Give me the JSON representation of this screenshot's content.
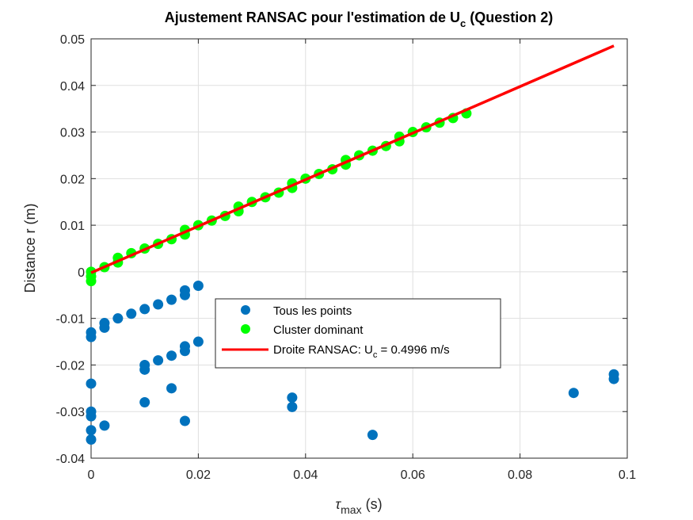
{
  "chart_data": {
    "type": "scatter",
    "title": "Ajustement RANSAC pour l'estimation de U",
    "title_sub": "c",
    "title_suffix": " (Question 2)",
    "xlabel_symbol": "τ",
    "xlabel_sub": "max",
    "xlabel_unit": " (s)",
    "ylabel": "Distance r (m)",
    "xlim": [
      0,
      0.1
    ],
    "ylim": [
      -0.04,
      0.05
    ],
    "xticks": [
      "0",
      "0.02",
      "0.04",
      "0.06",
      "0.08",
      "0.1"
    ],
    "yticks": [
      "-0.04",
      "-0.03",
      "-0.02",
      "-0.01",
      "0",
      "0.01",
      "0.02",
      "0.03",
      "0.04",
      "0.05"
    ],
    "grid": true,
    "legend_placement": "center",
    "series": [
      {
        "name": "Tous les points",
        "color": "#0072BD",
        "marker": "circle",
        "points": [
          [
            0,
            -0.013
          ],
          [
            0,
            -0.014
          ],
          [
            0,
            -0.024
          ],
          [
            0,
            -0.03
          ],
          [
            0,
            -0.031
          ],
          [
            0,
            -0.034
          ],
          [
            0,
            -0.036
          ],
          [
            0.0025,
            -0.011
          ],
          [
            0.0025,
            -0.012
          ],
          [
            0.0025,
            -0.033
          ],
          [
            0.005,
            -0.01
          ],
          [
            0.0075,
            -0.009
          ],
          [
            0.01,
            -0.008
          ],
          [
            0.01,
            -0.02
          ],
          [
            0.01,
            -0.021
          ],
          [
            0.01,
            -0.028
          ],
          [
            0.0125,
            -0.007
          ],
          [
            0.0125,
            -0.019
          ],
          [
            0.015,
            -0.006
          ],
          [
            0.015,
            -0.018
          ],
          [
            0.015,
            -0.025
          ],
          [
            0.0175,
            -0.004
          ],
          [
            0.0175,
            -0.005
          ],
          [
            0.0175,
            -0.016
          ],
          [
            0.0175,
            -0.017
          ],
          [
            0.0175,
            -0.032
          ],
          [
            0.02,
            -0.003
          ],
          [
            0.02,
            -0.015
          ],
          [
            0.0375,
            -0.027
          ],
          [
            0.0375,
            -0.029
          ],
          [
            0.0525,
            -0.035
          ],
          [
            0.09,
            -0.026
          ],
          [
            0.0975,
            -0.022
          ],
          [
            0.0975,
            -0.023
          ]
        ]
      },
      {
        "name": "Cluster dominant",
        "color": "#00FF00",
        "marker": "circle",
        "points": [
          [
            0,
            0.0
          ],
          [
            0,
            -0.001
          ],
          [
            0,
            -0.002
          ],
          [
            0.0025,
            0.001
          ],
          [
            0.005,
            0.002
          ],
          [
            0.005,
            0.003
          ],
          [
            0.0075,
            0.004
          ],
          [
            0.01,
            0.005
          ],
          [
            0.0125,
            0.006
          ],
          [
            0.015,
            0.007
          ],
          [
            0.0175,
            0.008
          ],
          [
            0.0175,
            0.009
          ],
          [
            0.02,
            0.01
          ],
          [
            0.0225,
            0.011
          ],
          [
            0.025,
            0.012
          ],
          [
            0.0275,
            0.013
          ],
          [
            0.0275,
            0.014
          ],
          [
            0.03,
            0.015
          ],
          [
            0.0325,
            0.016
          ],
          [
            0.035,
            0.017
          ],
          [
            0.0375,
            0.018
          ],
          [
            0.0375,
            0.019
          ],
          [
            0.04,
            0.02
          ],
          [
            0.0425,
            0.021
          ],
          [
            0.045,
            0.022
          ],
          [
            0.0475,
            0.023
          ],
          [
            0.0475,
            0.024
          ],
          [
            0.05,
            0.025
          ],
          [
            0.0525,
            0.026
          ],
          [
            0.055,
            0.027
          ],
          [
            0.0575,
            0.028
          ],
          [
            0.0575,
            0.029
          ],
          [
            0.06,
            0.03
          ],
          [
            0.0625,
            0.031
          ],
          [
            0.065,
            0.032
          ],
          [
            0.0675,
            0.033
          ],
          [
            0.07,
            0.034
          ]
        ]
      },
      {
        "name": "Droite RANSAC: U",
        "name_sub": "c",
        "name_suffix": " = 0.4996 m/s",
        "color": "#FF0000",
        "type": "line",
        "x": [
          0,
          0.0975
        ],
        "y": [
          -0.0002,
          0.0485
        ]
      }
    ]
  }
}
